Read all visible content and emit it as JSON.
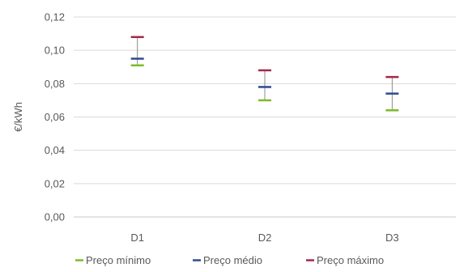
{
  "chart_data": {
    "type": "stock",
    "title": "",
    "xlabel": "",
    "ylabel": "€/kWh",
    "ylim": [
      0,
      0.12
    ],
    "y_ticks": [
      "0,00",
      "0,02",
      "0,04",
      "0,06",
      "0,08",
      "0,10",
      "0,12"
    ],
    "grid": true,
    "legend_position": "bottom",
    "categories": [
      "D1",
      "D2",
      "D3"
    ],
    "series": [
      {
        "name": "Preço mínimo",
        "color": "#7cbb2a",
        "values": [
          0.091,
          0.07,
          0.064
        ]
      },
      {
        "name": "Preço médio",
        "color": "#2e4a8f",
        "values": [
          0.095,
          0.078,
          0.074
        ]
      },
      {
        "name": "Preço máximo",
        "color": "#a3284a",
        "values": [
          0.108,
          0.088,
          0.084
        ]
      }
    ]
  }
}
